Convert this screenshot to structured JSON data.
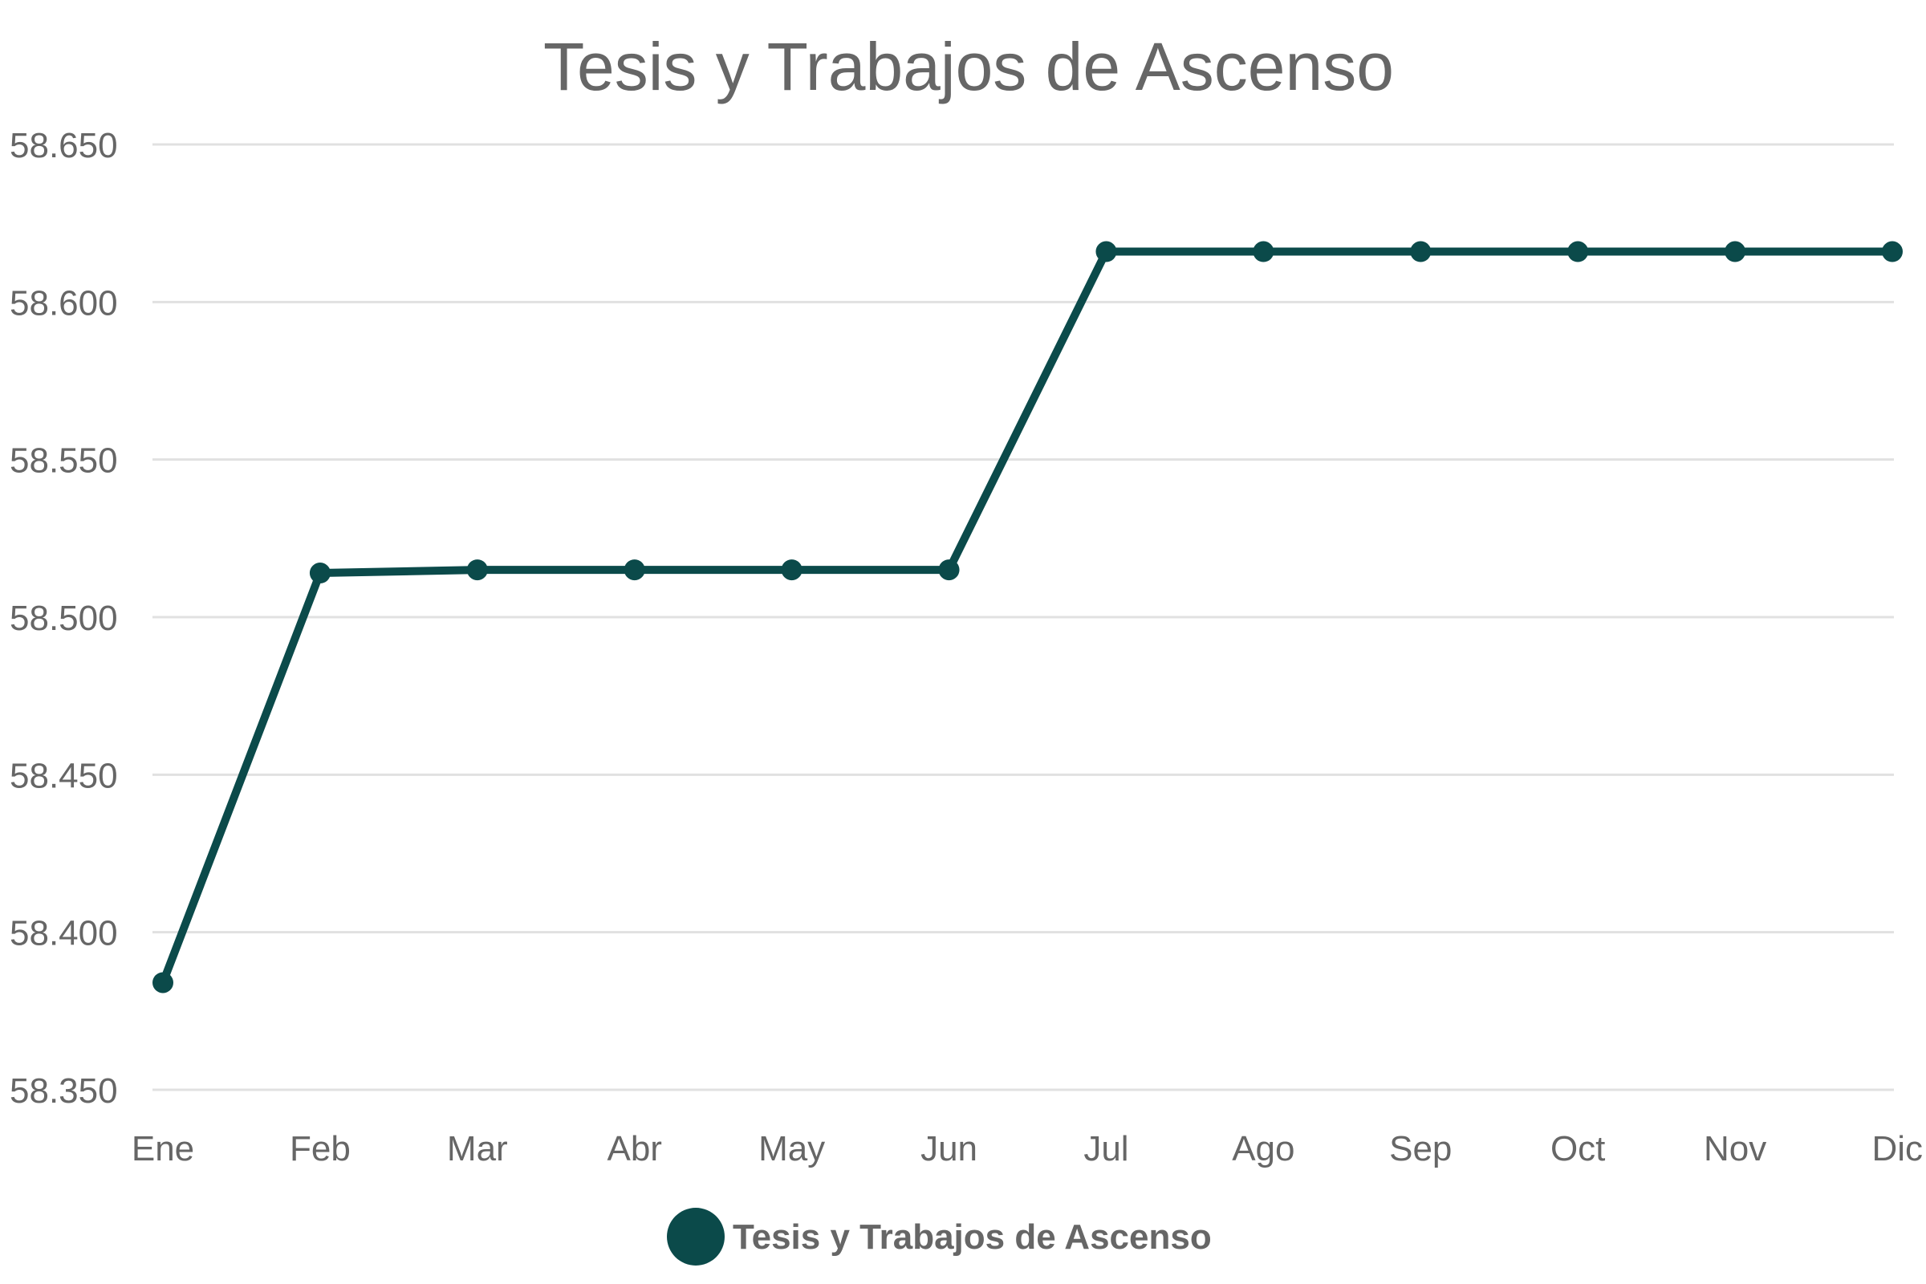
{
  "chart_data": {
    "type": "line",
    "title": "Tesis y Trabajos de Ascenso",
    "xlabel": "",
    "ylabel": "",
    "categories": [
      "Ene",
      "Feb",
      "Mar",
      "Abr",
      "May",
      "Jun",
      "Jul",
      "Ago",
      "Sep",
      "Oct",
      "Nov",
      "Dic"
    ],
    "series": [
      {
        "name": "Tesis y Trabajos de Ascenso",
        "color": "#0b4a4a",
        "values": [
          58384,
          58514,
          58515,
          58515,
          58515,
          58515,
          58616,
          58616,
          58616,
          58616,
          58616,
          58616
        ]
      }
    ],
    "ylim": [
      58350,
      58650
    ],
    "yticks": [
      58350,
      58400,
      58450,
      58500,
      58550,
      58600,
      58650
    ],
    "ytick_labels": [
      "58.350",
      "58.400",
      "58.450",
      "58.500",
      "58.550",
      "58.600",
      "58.650"
    ],
    "grid": true,
    "legend_position": "bottom"
  }
}
